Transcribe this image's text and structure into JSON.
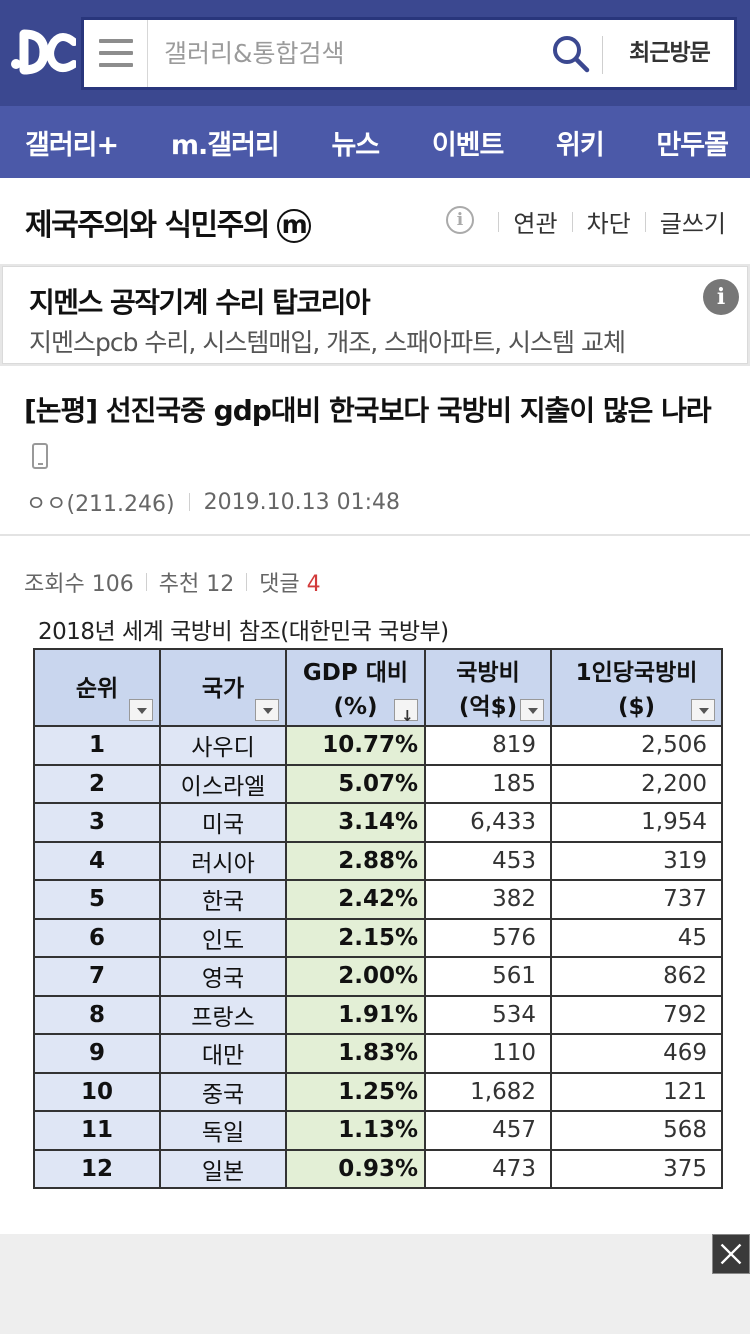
{
  "header": {
    "logo": "dc-logo",
    "search_placeholder": "갤러리&통합검색",
    "recent_label": "최근방문",
    "icons": {
      "menu": "hamburger-icon",
      "search": "search-icon"
    }
  },
  "nav": {
    "items": [
      {
        "label": "갤러리+"
      },
      {
        "label": "m.갤러리"
      },
      {
        "label": "뉴스"
      },
      {
        "label": "이벤트"
      },
      {
        "label": "위키"
      },
      {
        "label": "만두몰"
      }
    ]
  },
  "gallery": {
    "title": "제국주의와 식민주의",
    "mark": "m",
    "info_icon": "i",
    "links": [
      "연관",
      "차단",
      "글쓰기"
    ]
  },
  "ad": {
    "title": "지멘스 공작기계 수리 탑코리아",
    "description": "지멘스pcb 수리, 시스템매입, 개조, 스패아파트, 시스템 교체",
    "info_icon": "i"
  },
  "post": {
    "title": "[논평] 선진국중 gdp대비 한국보다 국방비 지출이 많은 나라",
    "author": "ㅇㅇ(211.246)",
    "date": "2019.10.13 01:48",
    "views_label": "조회수 106",
    "recommend_label": "추천 12",
    "comments_label": "댓글",
    "comments_count": "4"
  },
  "figure": {
    "caption": "2018년 세계 국방비 참조(대한민국 국방부)",
    "headers": {
      "rank": "순위",
      "country": "국가",
      "gdp_1": "GDP 대비",
      "gdp_2": "(%)",
      "spend_1": "국방비",
      "spend_2": "(억$)",
      "percap_1": "1인당국방비",
      "percap_2": "($)"
    },
    "rows": [
      {
        "rank": "1",
        "country": "사우디",
        "gdp": "10.77%",
        "spend": "819",
        "percap": "2,506"
      },
      {
        "rank": "2",
        "country": "이스라엘",
        "gdp": "5.07%",
        "spend": "185",
        "percap": "2,200"
      },
      {
        "rank": "3",
        "country": "미국",
        "gdp": "3.14%",
        "spend": "6,433",
        "percap": "1,954"
      },
      {
        "rank": "4",
        "country": "러시아",
        "gdp": "2.88%",
        "spend": "453",
        "percap": "319"
      },
      {
        "rank": "5",
        "country": "한국",
        "gdp": "2.42%",
        "spend": "382",
        "percap": "737"
      },
      {
        "rank": "6",
        "country": "인도",
        "gdp": "2.15%",
        "spend": "576",
        "percap": "45"
      },
      {
        "rank": "7",
        "country": "영국",
        "gdp": "2.00%",
        "spend": "561",
        "percap": "862"
      },
      {
        "rank": "8",
        "country": "프랑스",
        "gdp": "1.91%",
        "spend": "534",
        "percap": "792"
      },
      {
        "rank": "9",
        "country": "대만",
        "gdp": "1.83%",
        "spend": "110",
        "percap": "469"
      },
      {
        "rank": "10",
        "country": "중국",
        "gdp": "1.25%",
        "spend": "1,682",
        "percap": "121"
      },
      {
        "rank": "11",
        "country": "독일",
        "gdp": "1.13%",
        "spend": "457",
        "percap": "568"
      },
      {
        "rank": "12",
        "country": "일본",
        "gdp": "0.93%",
        "spend": "473",
        "percap": "375"
      }
    ]
  },
  "colors": {
    "header_bg": "#3b4890",
    "nav_bg": "#4b59a8",
    "header_cell": "#c9d6ee",
    "label_cell": "#dfe6f5",
    "gdp_cell": "#e3efd6",
    "comment_count": "#d23a3a"
  }
}
